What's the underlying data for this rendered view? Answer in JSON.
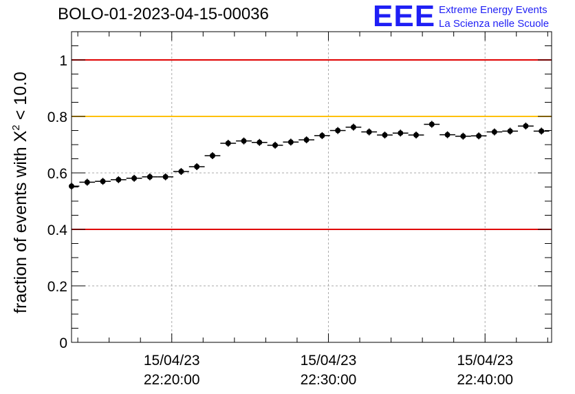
{
  "header": {
    "title": "BOLO-01-2023-04-15-00036",
    "logo_letters": "EEE",
    "logo_line1": "Extreme Energy Events",
    "logo_line2": "La Scienza nelle Scuole"
  },
  "chart_data": {
    "type": "scatter",
    "title": "BOLO-01-2023-04-15-00036",
    "xlabel": "",
    "ylabel_prefix": "fraction of events with ",
    "ylabel_chi": "X",
    "ylabel_sup": "2",
    "ylabel_suffix": " < 10.0",
    "x_unit": "minutes after 2023-04-15 22:00:00",
    "xlim": [
      13.6,
      44.25
    ],
    "ylim": [
      0,
      1.1
    ],
    "bin_width_minutes": 1,
    "yticks": [
      0,
      0.2,
      0.4,
      0.6,
      0.8,
      1
    ],
    "ytick_labels": [
      "0",
      "0.2",
      "0.4",
      "0.6",
      "0.8",
      "1"
    ],
    "xticks": [
      {
        "value": 20,
        "date": "15/04/23",
        "time": "22:20:00"
      },
      {
        "value": 30,
        "date": "15/04/23",
        "time": "22:30:00"
      },
      {
        "value": 40,
        "date": "15/04/23",
        "time": "22:40:00"
      }
    ],
    "grid": true,
    "reference_lines": [
      {
        "y": 1.0,
        "color": "#e00000"
      },
      {
        "y": 0.8,
        "color": "#ffc000"
      },
      {
        "y": 0.4,
        "color": "#e00000"
      }
    ],
    "series": [
      {
        "color": "#000000",
        "x": [
          13.6,
          14.6,
          15.6,
          16.6,
          17.6,
          18.6,
          19.6,
          20.6,
          21.6,
          22.6,
          23.6,
          24.6,
          25.6,
          26.6,
          27.6,
          28.6,
          29.6,
          30.6,
          31.6,
          32.6,
          33.6,
          34.6,
          35.6,
          36.6,
          37.6,
          38.6,
          39.6,
          40.6,
          41.6,
          42.6,
          43.6
        ],
        "y": [
          0.553,
          0.567,
          0.57,
          0.576,
          0.581,
          0.586,
          0.586,
          0.605,
          0.622,
          0.661,
          0.705,
          0.713,
          0.708,
          0.698,
          0.709,
          0.717,
          0.732,
          0.75,
          0.762,
          0.745,
          0.734,
          0.741,
          0.734,
          0.772,
          0.735,
          0.73,
          0.731,
          0.745,
          0.748,
          0.766,
          0.748
        ]
      }
    ]
  }
}
